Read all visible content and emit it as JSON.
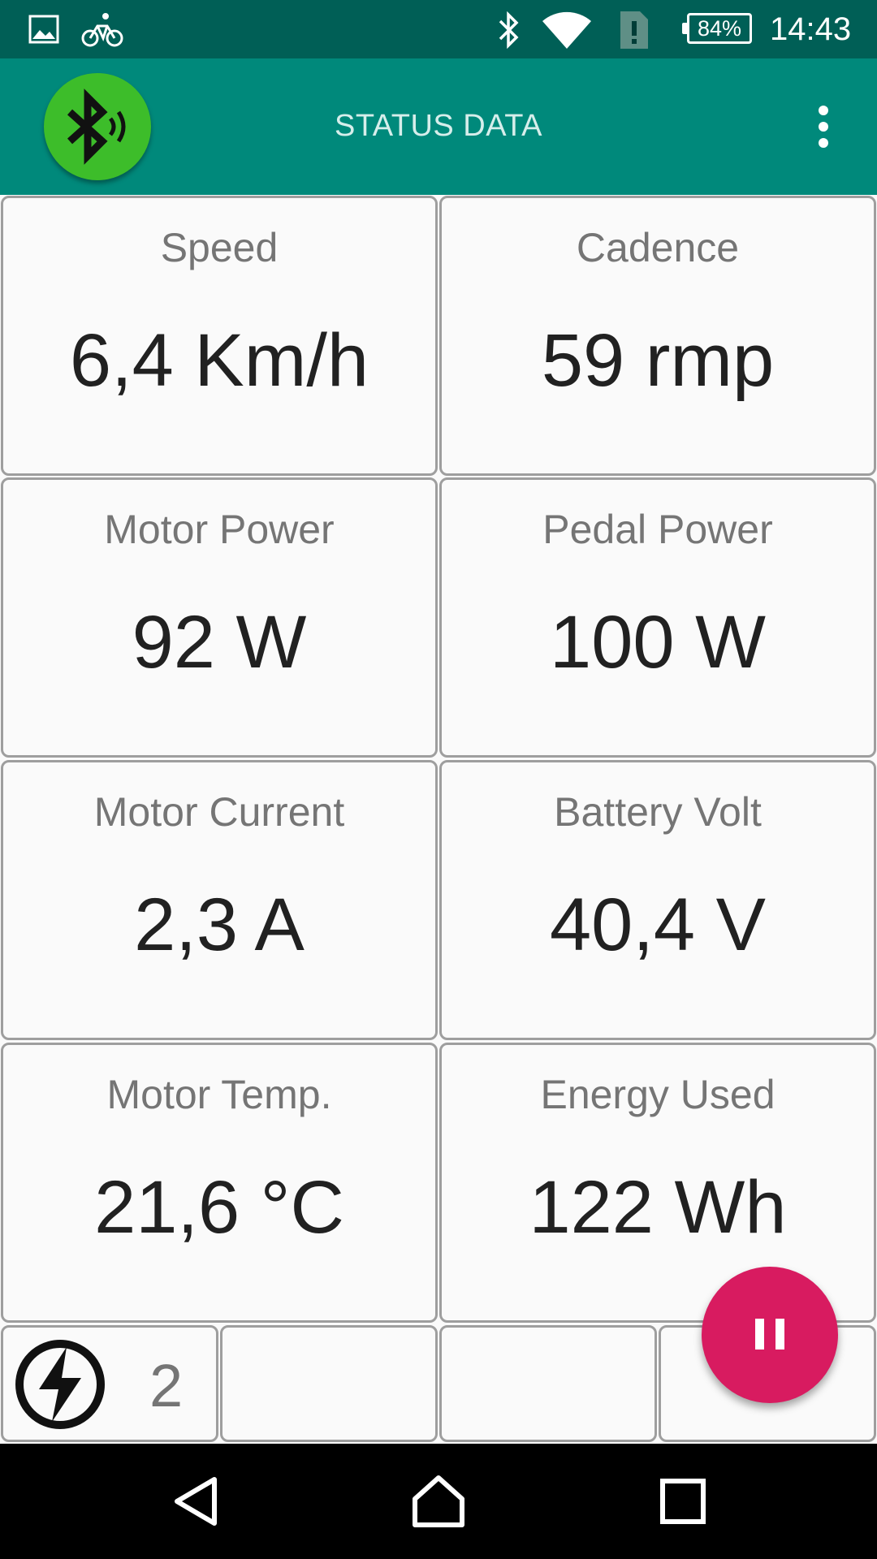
{
  "status_bar": {
    "icons": [
      "image-icon",
      "bicycle-icon",
      "bluetooth-icon",
      "wifi-icon",
      "sim-alert-icon"
    ],
    "battery": "84%",
    "time": "14:43"
  },
  "app_bar": {
    "title": "STATUS DATA",
    "bluetooth_button_color": "#3dbd2a",
    "color": "#00897b"
  },
  "metrics": [
    {
      "label": "Speed",
      "value": "6,4 Km/h"
    },
    {
      "label": "Cadence",
      "value": "59 rmp"
    },
    {
      "label": "Motor Power",
      "value": "92 W"
    },
    {
      "label": "Pedal Power",
      "value": "100 W"
    },
    {
      "label": "Motor Current",
      "value": "2,3 A"
    },
    {
      "label": "Battery Volt",
      "value": "40,4 V"
    },
    {
      "label": "Motor Temp.",
      "value": "21,6 °C"
    },
    {
      "label": "Energy Used",
      "value": "122 Wh"
    }
  ],
  "bottom_row": {
    "assist_icon": "bolt-circle-icon",
    "assist_level": "2"
  },
  "fab": {
    "icon": "pause-icon",
    "color": "#d81b60"
  },
  "nav": {
    "icons": [
      "back-icon",
      "home-icon",
      "recents-icon"
    ]
  }
}
